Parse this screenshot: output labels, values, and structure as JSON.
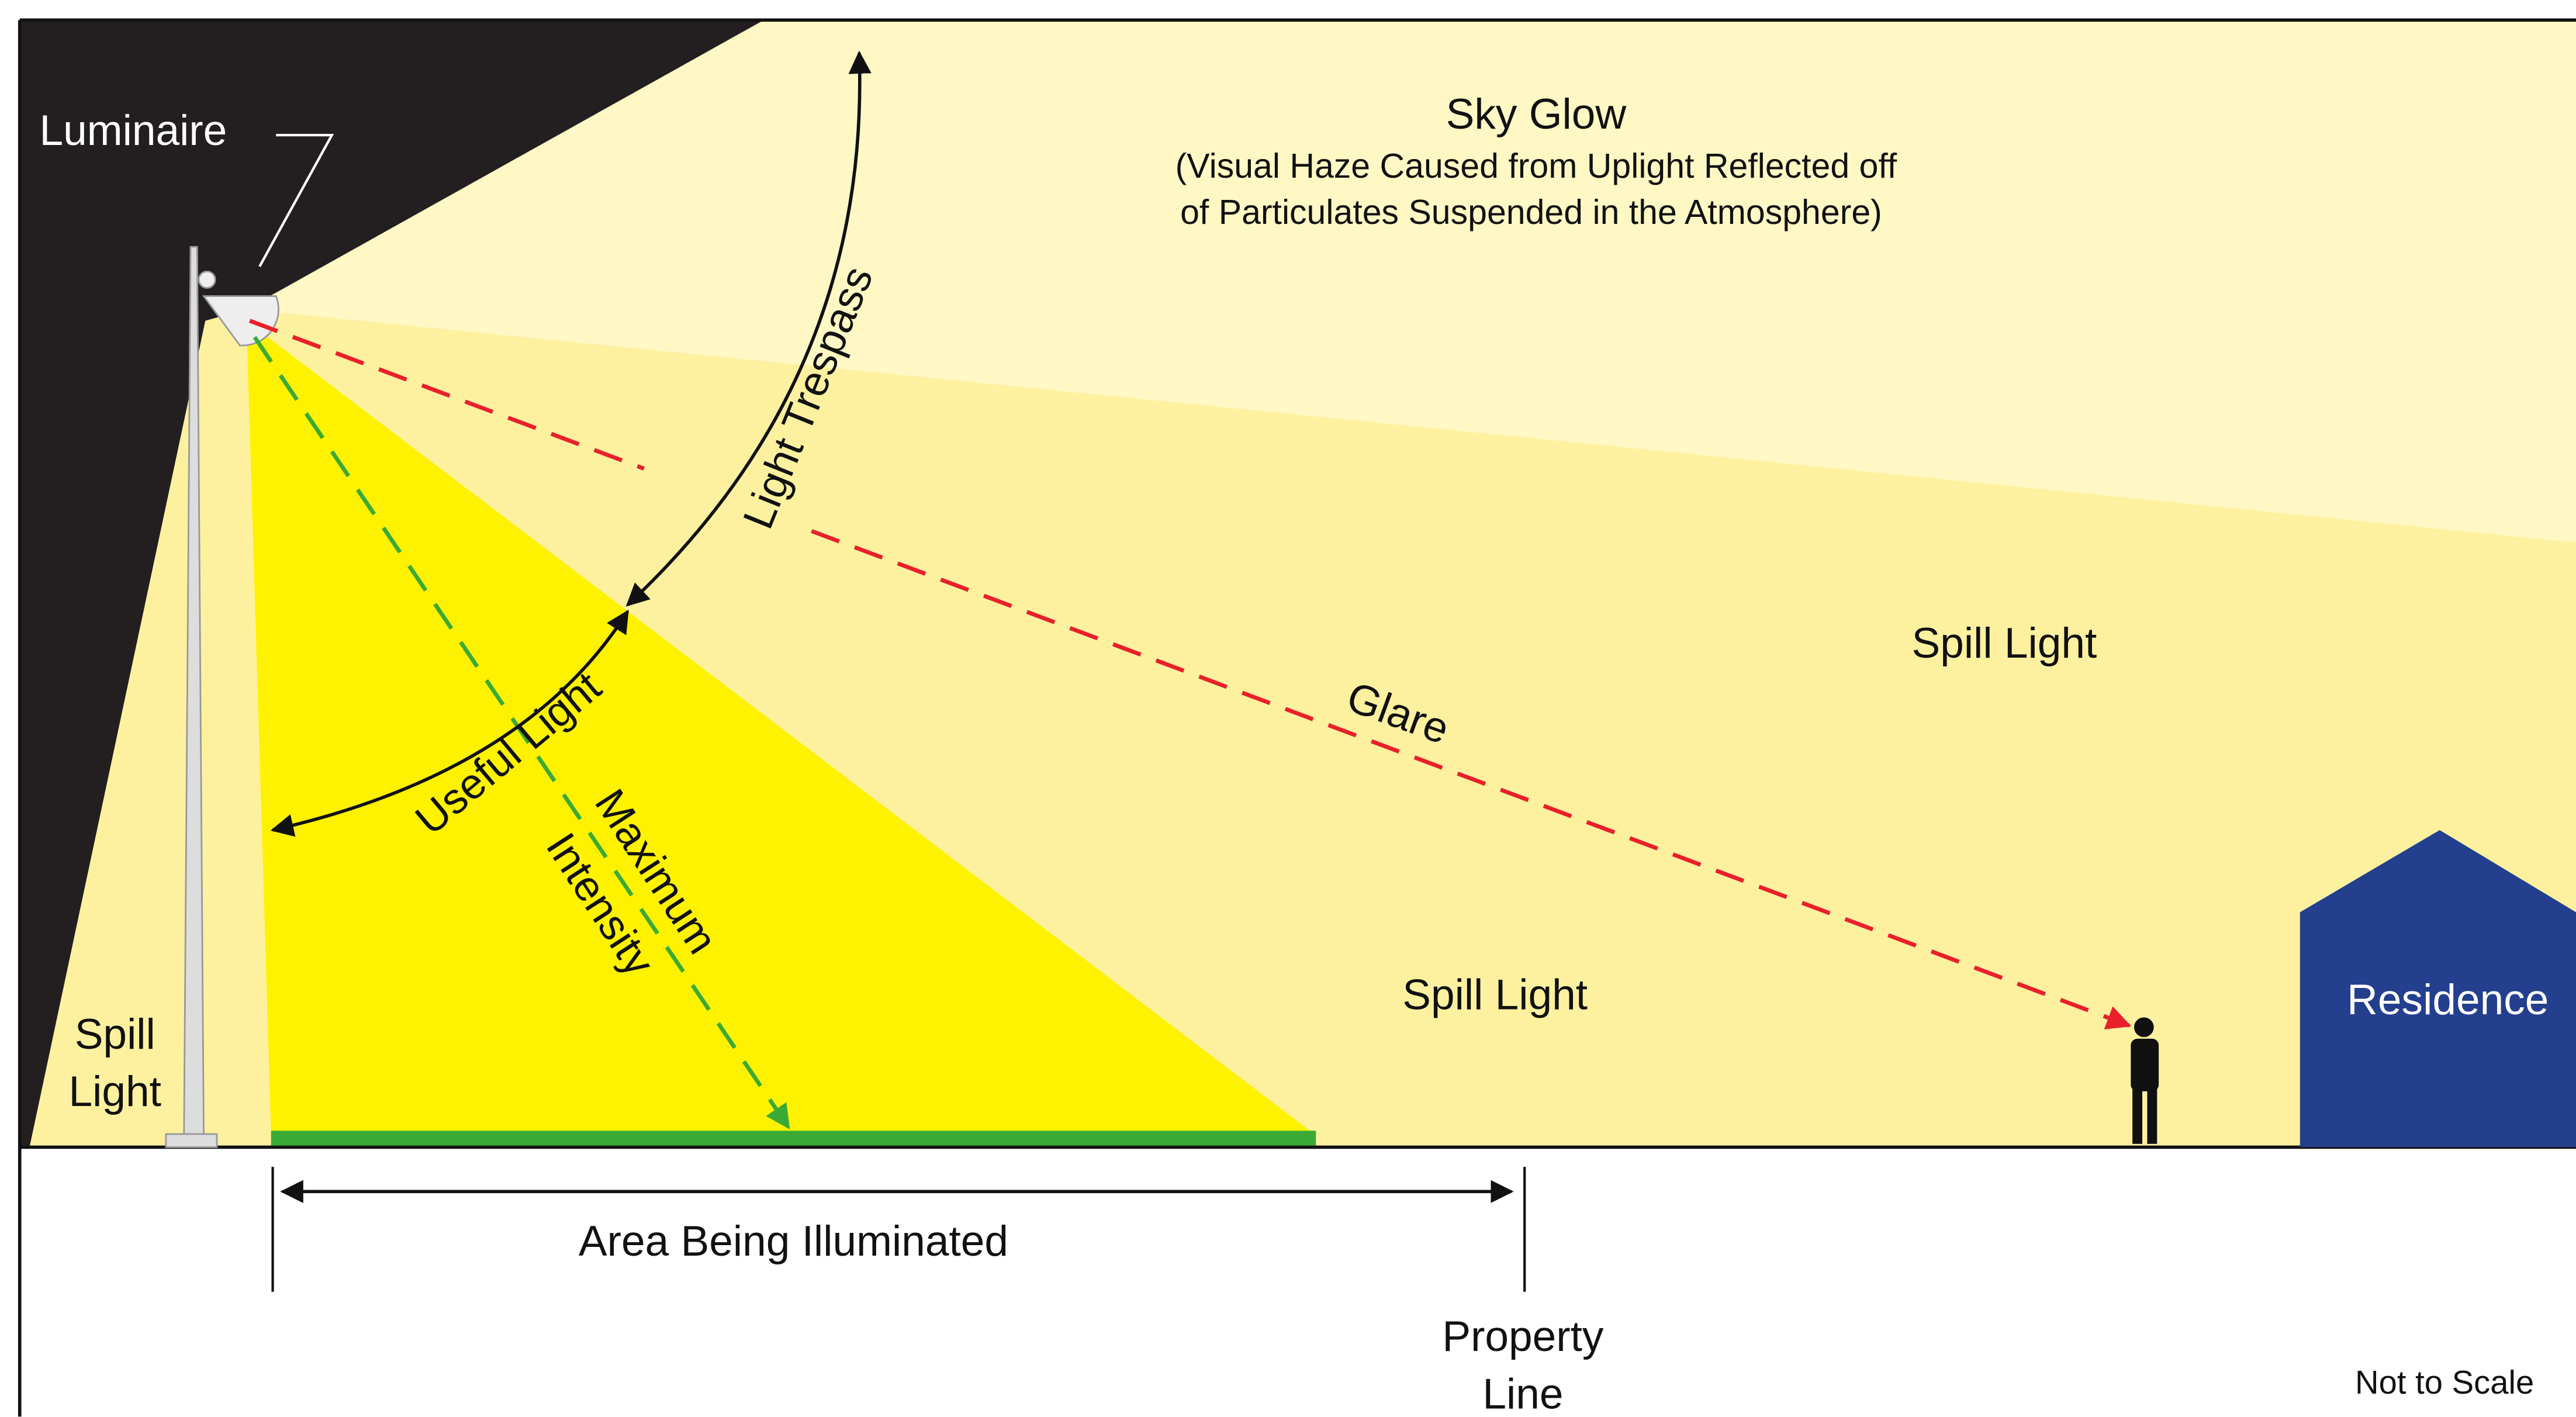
{
  "labels": {
    "luminaire": "Luminaire",
    "sky_glow": {
      "title": "Sky Glow",
      "lines": [
        "(Visual Haze Caused from Uplight Reflected off",
        "of Particulates Suspended in the Atmosphere)"
      ]
    },
    "light_trespass": "Light Trespass",
    "useful_light": "Useful Light",
    "maximum_intensity": [
      "Maximum",
      "Intensity"
    ],
    "glare": "Glare",
    "spill_light_right": "Spill Light",
    "spill_light_middle": "Spill Light",
    "spill_light_left": [
      "Spill",
      "Light"
    ],
    "residence": "Residence",
    "area": "Area Being Illuminated",
    "property_line": [
      "Property",
      "Line"
    ],
    "not_to_scale": "Not to Scale"
  }
}
